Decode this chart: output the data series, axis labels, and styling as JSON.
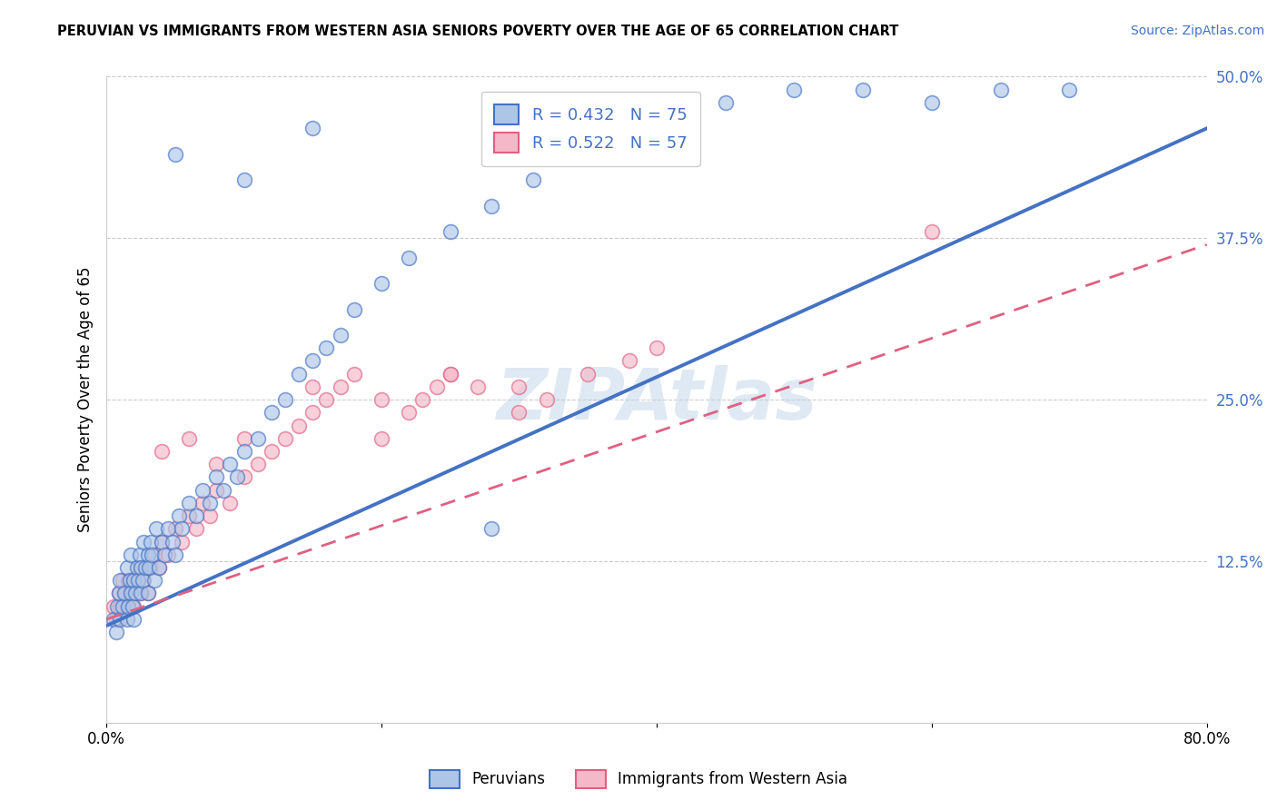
{
  "title": "PERUVIAN VS IMMIGRANTS FROM WESTERN ASIA SENIORS POVERTY OVER THE AGE OF 65 CORRELATION CHART",
  "source": "Source: ZipAtlas.com",
  "ylabel": "Seniors Poverty Over the Age of 65",
  "xlabel": "",
  "legend_label1": "Peruvians",
  "legend_label2": "Immigrants from Western Asia",
  "R1": 0.432,
  "N1": 75,
  "R2": 0.522,
  "N2": 57,
  "color1": "#adc6e8",
  "color2": "#f4b8c8",
  "line_color1": "#4472c4",
  "line_color2": "#e06080",
  "watermark": "ZIPAtlas",
  "xlim": [
    0.0,
    0.8
  ],
  "ylim": [
    0.0,
    0.5
  ],
  "xticks": [
    0.0,
    0.2,
    0.4,
    0.6,
    0.8
  ],
  "xticklabels": [
    "0.0%",
    "",
    "",
    "",
    "80.0%"
  ],
  "ytick_positions": [
    0.0,
    0.125,
    0.25,
    0.375,
    0.5
  ],
  "ytick_labels": [
    "",
    "12.5%",
    "25.0%",
    "37.5%",
    "50.0%"
  ],
  "blue_scatter_x": [
    0.005,
    0.007,
    0.008,
    0.009,
    0.01,
    0.01,
    0.012,
    0.013,
    0.015,
    0.015,
    0.016,
    0.017,
    0.018,
    0.018,
    0.019,
    0.02,
    0.02,
    0.021,
    0.022,
    0.023,
    0.024,
    0.025,
    0.025,
    0.026,
    0.027,
    0.028,
    0.03,
    0.03,
    0.031,
    0.032,
    0.033,
    0.035,
    0.036,
    0.038,
    0.04,
    0.042,
    0.045,
    0.048,
    0.05,
    0.053,
    0.055,
    0.06,
    0.065,
    0.07,
    0.075,
    0.08,
    0.085,
    0.09,
    0.095,
    0.1,
    0.11,
    0.12,
    0.13,
    0.14,
    0.15,
    0.16,
    0.17,
    0.18,
    0.2,
    0.22,
    0.25,
    0.28,
    0.31,
    0.35,
    0.4,
    0.45,
    0.5,
    0.55,
    0.6,
    0.65,
    0.7,
    0.05,
    0.1,
    0.15,
    0.28
  ],
  "blue_scatter_y": [
    0.08,
    0.07,
    0.09,
    0.1,
    0.08,
    0.11,
    0.09,
    0.1,
    0.08,
    0.12,
    0.09,
    0.11,
    0.1,
    0.13,
    0.09,
    0.08,
    0.11,
    0.1,
    0.12,
    0.11,
    0.13,
    0.1,
    0.12,
    0.11,
    0.14,
    0.12,
    0.1,
    0.13,
    0.12,
    0.14,
    0.13,
    0.11,
    0.15,
    0.12,
    0.14,
    0.13,
    0.15,
    0.14,
    0.13,
    0.16,
    0.15,
    0.17,
    0.16,
    0.18,
    0.17,
    0.19,
    0.18,
    0.2,
    0.19,
    0.21,
    0.22,
    0.24,
    0.25,
    0.27,
    0.28,
    0.29,
    0.3,
    0.32,
    0.34,
    0.36,
    0.38,
    0.4,
    0.42,
    0.44,
    0.46,
    0.48,
    0.49,
    0.49,
    0.48,
    0.49,
    0.49,
    0.44,
    0.42,
    0.46,
    0.15
  ],
  "pink_scatter_x": [
    0.005,
    0.007,
    0.009,
    0.01,
    0.012,
    0.013,
    0.015,
    0.016,
    0.018,
    0.02,
    0.022,
    0.024,
    0.025,
    0.027,
    0.03,
    0.032,
    0.035,
    0.038,
    0.04,
    0.045,
    0.05,
    0.055,
    0.06,
    0.065,
    0.07,
    0.075,
    0.08,
    0.09,
    0.1,
    0.11,
    0.12,
    0.13,
    0.14,
    0.15,
    0.16,
    0.17,
    0.18,
    0.2,
    0.22,
    0.23,
    0.24,
    0.25,
    0.27,
    0.3,
    0.32,
    0.35,
    0.38,
    0.4,
    0.04,
    0.06,
    0.08,
    0.1,
    0.15,
    0.2,
    0.25,
    0.3,
    0.6
  ],
  "pink_scatter_y": [
    0.09,
    0.08,
    0.1,
    0.09,
    0.11,
    0.1,
    0.09,
    0.11,
    0.1,
    0.09,
    0.11,
    0.1,
    0.12,
    0.11,
    0.1,
    0.12,
    0.13,
    0.12,
    0.14,
    0.13,
    0.15,
    0.14,
    0.16,
    0.15,
    0.17,
    0.16,
    0.18,
    0.17,
    0.19,
    0.2,
    0.21,
    0.22,
    0.23,
    0.24,
    0.25,
    0.26,
    0.27,
    0.22,
    0.24,
    0.25,
    0.26,
    0.27,
    0.26,
    0.24,
    0.25,
    0.27,
    0.28,
    0.29,
    0.21,
    0.22,
    0.2,
    0.22,
    0.26,
    0.25,
    0.27,
    0.26,
    0.38
  ],
  "blue_line": [
    0.0,
    0.8,
    0.075,
    0.46
  ],
  "pink_line": [
    0.0,
    0.8,
    0.08,
    0.37
  ]
}
